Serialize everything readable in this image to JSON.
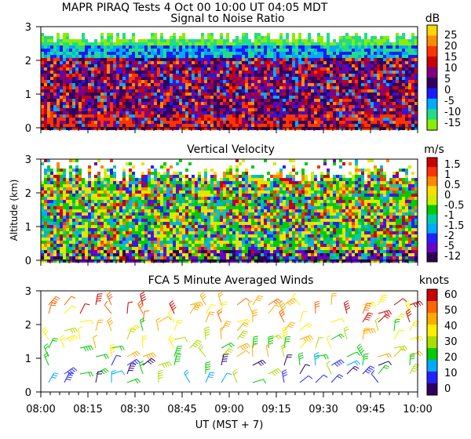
{
  "figure": {
    "title_line1": "MAPR PIRAQ Tests   4 Oct 00   10:00 UT   04:05   MDT",
    "xlabel": "UT  (MST + 7)",
    "x_tick_labels": [
      "08:00",
      "08:15",
      "08:30",
      "08:45",
      "09:00",
      "09:15",
      "09:30",
      "09:45",
      "10:00"
    ]
  },
  "chart_data": [
    {
      "type": "heatmap",
      "title": "Signal to Noise Ratio",
      "units": "dB",
      "ylabel": "",
      "ylim": [
        0,
        3
      ],
      "y_ticks": [
        "0",
        "1",
        "2",
        "3"
      ],
      "colorbar": {
        "labels": [
          "25",
          "20",
          "15",
          "10",
          "5",
          "0",
          "-5",
          "-10",
          "-15"
        ],
        "colors": [
          "#ffd700",
          "#ff8c00",
          "#ff3300",
          "#cc0000",
          "#800080",
          "#300060",
          "#1a1aff",
          "#00aaff",
          "#22dd88",
          "#88ee00"
        ]
      }
    },
    {
      "type": "heatmap",
      "title": "Vertical Velocity",
      "units": "m/s",
      "ylabel": "Altitude (km)",
      "ylim": [
        0,
        3
      ],
      "y_ticks": [
        "0",
        "1",
        "2",
        "3"
      ],
      "colorbar": {
        "labels": [
          "1.5",
          "1",
          "0.5",
          "0",
          "-0.5",
          "-1",
          "-1.5",
          "-2",
          "-5",
          "-12"
        ],
        "colors": [
          "#cc0000",
          "#ff3300",
          "#ff8800",
          "#ffdd00",
          "#ccee00",
          "#00cc00",
          "#00ccaa",
          "#00aaff",
          "#2222ff",
          "#6a00cc",
          "#300050"
        ]
      }
    },
    {
      "type": "scatter",
      "title": "FCA 5 Minute Averaged Winds",
      "units": "knots",
      "ylabel": "",
      "ylim": [
        0,
        3
      ],
      "y_ticks": [
        "0",
        "1",
        "2",
        "3"
      ],
      "colorbar": {
        "labels": [
          "60",
          "50",
          "40",
          "30",
          "20",
          "10",
          "0"
        ],
        "colors": [
          "#cc0000",
          "#ff6600",
          "#ffaa00",
          "#ffee00",
          "#aadd00",
          "#00cc00",
          "#00aaff",
          "#2222ff",
          "#300060"
        ]
      }
    }
  ]
}
